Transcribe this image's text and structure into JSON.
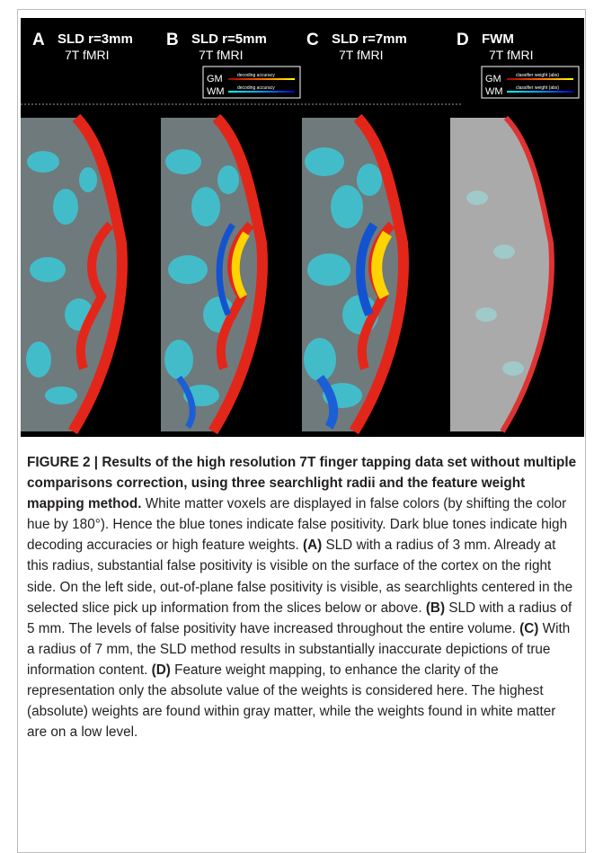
{
  "figure": {
    "panels": [
      {
        "letter": "A",
        "title": "SLD r=3mm",
        "subtitle": "7T fMRI"
      },
      {
        "letter": "B",
        "title": "SLD r=5mm",
        "subtitle": "7T fMRI",
        "legend": [
          {
            "name": "GM",
            "label": "decoding accuracy"
          },
          {
            "name": "WM",
            "label": "decoding accuracy"
          }
        ]
      },
      {
        "letter": "C",
        "title": "SLD r=7mm",
        "subtitle": "7T fMRI"
      },
      {
        "letter": "D",
        "title": "FWM",
        "subtitle": "7T fMRI",
        "legend": [
          {
            "name": "GM",
            "label": "classifier weight (abs)"
          },
          {
            "name": "WM",
            "label": "classifier weight (abs)"
          }
        ]
      }
    ]
  },
  "caption": {
    "title": "FIGURE 2 | Results of the high resolution 7T finger tapping data set without multiple comparisons correction, using three searchlight radii and the feature weight mapping method.",
    "intro": "White matter voxels are displayed in false colors (by shifting the color hue by 180°). Hence the blue tones indicate false positivity. Dark blue tones indicate high decoding accuracies or high feature weights.",
    "items": [
      {
        "label": "(A)",
        "text": "SLD with a radius of 3 mm. Already at this radius, substantial false positivity is visible on the surface of the cortex on the right side. On the left side, out-of-plane false positivity is visible, as searchlights centered in the selected slice pick up information from the slices below or above."
      },
      {
        "label": "(B)",
        "text": "SLD with a radius of 5 mm. The levels of false positivity have increased throughout the entire volume."
      },
      {
        "label": "(C)",
        "text": "With a radius of 7 mm, the SLD method results in substantially inaccurate depictions of true information content."
      },
      {
        "label": "(D)",
        "text": "Feature weight mapping, to enhance the clarity of the representation only the absolute value of the weights is considered here. The highest (absolute) weights are found within gray matter, while the weights found in white matter are on a low level."
      }
    ]
  }
}
